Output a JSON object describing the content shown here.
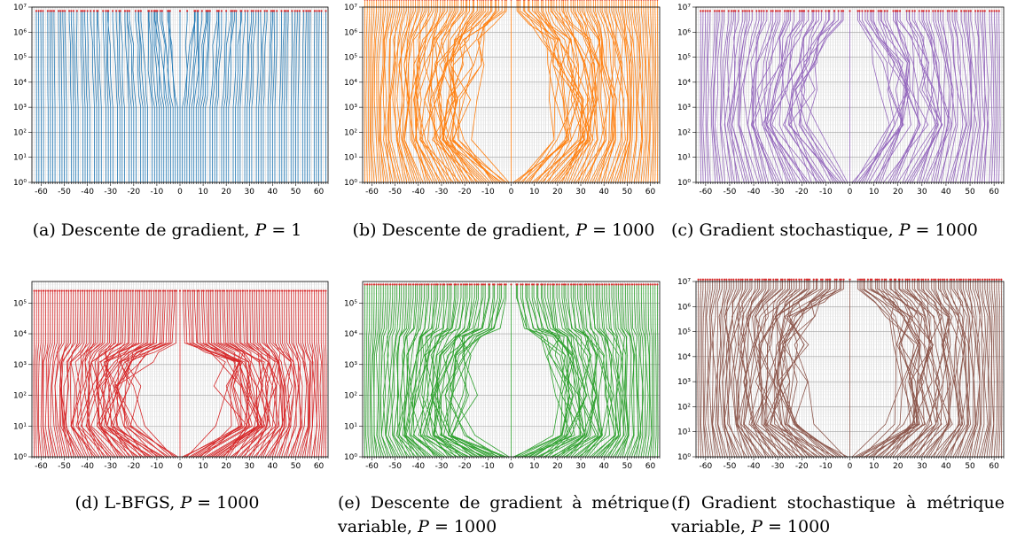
{
  "chart_data": [
    {
      "type": "line",
      "panel": "a",
      "caption": "(a) Descente de gradient, P = 1",
      "color": "#1f77b4",
      "y_scale": "log",
      "ylim": [
        1,
        10000000
      ],
      "y_ticks": [
        "10⁰",
        "10¹",
        "10²",
        "10³",
        "10⁴",
        "10⁵",
        "10⁶",
        "10⁷"
      ],
      "x_ticks": [
        "-60",
        "-50",
        "-40",
        "-30",
        "-20",
        "-10",
        "0",
        "10",
        "20",
        "30",
        "40",
        "50",
        "60"
      ],
      "xlim": [
        -64,
        64
      ],
      "grid": true,
      "marker_color": "#d62728",
      "top_level": 7000000,
      "flat_level": 1,
      "spread": [
        {
          "y": 3000000,
          "w": 0.15
        },
        {
          "y": 300000,
          "w": 0.1
        },
        {
          "y": 30000,
          "w": 0.08
        },
        {
          "y": 3000,
          "w": 0.04
        },
        {
          "y": 1000,
          "w": 0.0
        }
      ],
      "center_dip": 4,
      "gap_every": 5
    },
    {
      "type": "line",
      "panel": "b",
      "caption": "(b) Descente de gradient, P = 1000",
      "color": "#ff7f0e",
      "y_scale": "log",
      "ylim": [
        1,
        10000000
      ],
      "y_ticks": [
        "10⁰",
        "10¹",
        "10²",
        "10³",
        "10⁴",
        "10⁵",
        "10⁶",
        "10⁷"
      ],
      "x_ticks": [
        "-60",
        "-50",
        "-40",
        "-30",
        "-20",
        "-10",
        "0",
        "10",
        "20",
        "30",
        "40",
        "50",
        "60"
      ],
      "xlim": [
        -64,
        64
      ],
      "grid": true,
      "marker_color": "#d62728",
      "top_level": 20000000,
      "flat_level": 1,
      "spread": [
        {
          "y": 7000000,
          "w": 0.05
        },
        {
          "y": 2000000,
          "w": 0.3
        },
        {
          "y": 500000,
          "w": 0.6
        },
        {
          "y": 50000,
          "w": 0.75
        },
        {
          "y": 2000,
          "w": 0.85
        },
        {
          "y": 50,
          "w": 0.92
        }
      ],
      "center_dip": 0,
      "gap_every": 0
    },
    {
      "type": "line",
      "panel": "c",
      "caption": "(c) Gradient stochastique, P = 1000",
      "color": "#9467bd",
      "y_scale": "log",
      "ylim": [
        1,
        10000000
      ],
      "y_ticks": [
        "10⁰",
        "10¹",
        "10²",
        "10³",
        "10⁴",
        "10⁵",
        "10⁶",
        "10⁷"
      ],
      "x_ticks": [
        "-60",
        "-50",
        "-40",
        "-30",
        "-20",
        "-10",
        "0",
        "10",
        "20",
        "30",
        "40",
        "50",
        "60"
      ],
      "xlim": [
        -64,
        64
      ],
      "grid": true,
      "marker_color": "#d62728",
      "top_level": 7000000,
      "flat_level": 1,
      "spread": [
        {
          "y": 3000000,
          "w": 0.1
        },
        {
          "y": 600000,
          "w": 0.35
        },
        {
          "y": 60000,
          "w": 0.55
        },
        {
          "y": 5000,
          "w": 0.7
        },
        {
          "y": 200,
          "w": 0.85
        }
      ],
      "center_dip": 0,
      "gap_every": 6
    },
    {
      "type": "line",
      "panel": "d",
      "caption": "(d) L-BFGS, P = 1000",
      "color": "#d62728",
      "y_scale": "log",
      "ylim": [
        1,
        500000
      ],
      "y_ticks": [
        "10⁰",
        "10¹",
        "10²",
        "10³",
        "10⁴",
        "10⁵"
      ],
      "x_ticks": [
        "-60",
        "-50",
        "-40",
        "-30",
        "-20",
        "-10",
        "0",
        "10",
        "20",
        "30",
        "40",
        "50",
        "60"
      ],
      "xlim": [
        -64,
        64
      ],
      "grid": true,
      "marker_color": "#d62728",
      "top_level": 250000,
      "flat_level": 1,
      "spread": [
        {
          "y": 100000,
          "w": 0.02
        },
        {
          "y": 5000,
          "w": 0.05
        },
        {
          "y": 2500,
          "w": 0.5
        },
        {
          "y": 1200,
          "w": 0.8
        },
        {
          "y": 200,
          "w": 0.9
        },
        {
          "y": 10,
          "w": 0.96
        }
      ],
      "center_dip": 0,
      "gap_every": 0
    },
    {
      "type": "line",
      "panel": "e",
      "caption": "(e) Descente de gradient à métrique variable, P = 1000",
      "color": "#2ca02c",
      "y_scale": "log",
      "ylim": [
        1,
        500000
      ],
      "y_ticks": [
        "10⁰",
        "10¹",
        "10²",
        "10³",
        "10⁴",
        "10⁵"
      ],
      "x_ticks": [
        "-60",
        "-50",
        "-40",
        "-30",
        "-20",
        "-10",
        "0",
        "10",
        "20",
        "30",
        "40",
        "50",
        "60"
      ],
      "xlim": [
        -64,
        64
      ],
      "grid": true,
      "marker_color": "#d62728",
      "top_level": 400000,
      "flat_level": 1,
      "spread": [
        {
          "y": 150000,
          "w": 0.05
        },
        {
          "y": 15000,
          "w": 0.2
        },
        {
          "y": 8000,
          "w": 0.55
        },
        {
          "y": 2000,
          "w": 0.75
        },
        {
          "y": 100,
          "w": 0.88
        },
        {
          "y": 5,
          "w": 0.95
        }
      ],
      "center_dip": 0,
      "gap_every": 0
    },
    {
      "type": "line",
      "panel": "f",
      "caption": "(f) Gradient stochastique à métrique variable, P = 1000",
      "color": "#8c564b",
      "y_scale": "log",
      "ylim": [
        1,
        10000000
      ],
      "y_ticks": [
        "10⁰",
        "10¹",
        "10²",
        "10³",
        "10⁴",
        "10⁵",
        "10⁶",
        "10⁷"
      ],
      "x_ticks": [
        "-60",
        "-50",
        "-40",
        "-30",
        "-20",
        "-10",
        "0",
        "10",
        "20",
        "30",
        "40",
        "50",
        "60"
      ],
      "xlim": [
        -64,
        64
      ],
      "grid": true,
      "marker_color": "#d62728",
      "top_level": 12000000,
      "flat_level": 1,
      "spread": [
        {
          "y": 5000000,
          "w": 0.08
        },
        {
          "y": 1500000,
          "w": 0.5
        },
        {
          "y": 400000,
          "w": 0.8
        },
        {
          "y": 30000,
          "w": 0.9
        },
        {
          "y": 1000,
          "w": 0.95
        },
        {
          "y": 20,
          "w": 0.98
        }
      ],
      "center_dip": 0,
      "gap_every": 0
    }
  ]
}
